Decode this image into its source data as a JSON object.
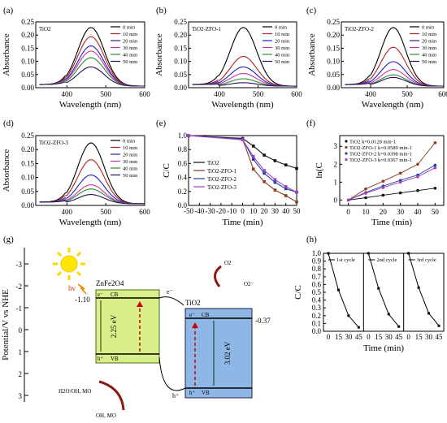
{
  "colors": {
    "t0": "#000000",
    "t10": "#b22222",
    "t20": "#1f1fbf",
    "t30": "#cc33aa",
    "t40": "#2e8b2e",
    "t50": "#2a0d5e",
    "TiO2": "#111111",
    "ZFO1": "#8b3a1e",
    "ZFO2": "#2040a0",
    "ZFO3": "#a040c0"
  },
  "chart_data": [
    {
      "id": "a",
      "panel_label": "(a)",
      "type": "line",
      "name": "TiO2",
      "xlabel": "Wavelength (nm)",
      "ylabel": "Absorbance",
      "xlim": [
        320,
        600
      ],
      "ylim": [
        0.0,
        0.25
      ],
      "xticks": [
        "400",
        "500",
        "600"
      ],
      "yticks": [
        "0.00",
        "0.05",
        "0.10",
        "0.15",
        "0.20",
        "0.25"
      ],
      "series": [
        {
          "name": "0 min",
          "peak": 0.235
        },
        {
          "name": "10 min",
          "peak": 0.2
        },
        {
          "name": "20 min",
          "peak": 0.165
        },
        {
          "name": "30 min",
          "peak": 0.145
        },
        {
          "name": "40 min",
          "peak": 0.12
        },
        {
          "name": "50 min",
          "peak": 0.085
        }
      ]
    },
    {
      "id": "b",
      "panel_label": "(b)",
      "type": "line",
      "name": "TiO2-ZFO-1",
      "xlabel": "Wavelength (nm)",
      "ylabel": "Absorbance",
      "xlim": [
        320,
        600
      ],
      "ylim": [
        0.0,
        0.25
      ],
      "xticks": [
        "400",
        "500",
        "600"
      ],
      "yticks": [
        "0.00",
        "0.05",
        "0.10",
        "0.15",
        "0.20",
        "0.25"
      ],
      "series": [
        {
          "name": "0 min",
          "peak": 0.235
        },
        {
          "name": "10 min",
          "peak": 0.125
        },
        {
          "name": "20 min",
          "peak": 0.085
        },
        {
          "name": "30 min",
          "peak": 0.06
        },
        {
          "name": "40 min",
          "peak": 0.04
        },
        {
          "name": "50 min",
          "peak": 0.025
        }
      ]
    },
    {
      "id": "c",
      "panel_label": "(c)",
      "type": "line",
      "name": "TiO2-ZFO-2",
      "xlabel": "Wavelength (nm)",
      "ylabel": "Absorbance",
      "xlim": [
        320,
        600
      ],
      "ylim": [
        0.0,
        0.25
      ],
      "xticks": [
        "400",
        "500",
        "600"
      ],
      "yticks": [
        "0.00",
        "0.05",
        "0.10",
        "0.15",
        "0.20",
        "0.25"
      ],
      "series": [
        {
          "name": "0 min",
          "peak": 0.235
        },
        {
          "name": "10 min",
          "peak": 0.16
        },
        {
          "name": "20 min",
          "peak": 0.105
        },
        {
          "name": "30 min",
          "peak": 0.075
        },
        {
          "name": "40 min",
          "peak": 0.055
        },
        {
          "name": "50 min",
          "peak": 0.045
        }
      ]
    },
    {
      "id": "d",
      "panel_label": "(d)",
      "type": "line",
      "name": "TiO2-ZFO-3",
      "xlabel": "Wavelength (nm)",
      "ylabel": "Absorbance",
      "xlim": [
        320,
        600
      ],
      "ylim": [
        0.0,
        0.25
      ],
      "xticks": [
        "400",
        "500",
        "600"
      ],
      "yticks": [
        "0.00",
        "0.05",
        "0.10",
        "0.15",
        "0.20",
        "0.25"
      ],
      "series": [
        {
          "name": "0 min",
          "peak": 0.23
        },
        {
          "name": "10 min",
          "peak": 0.17
        },
        {
          "name": "20 min",
          "peak": 0.115
        },
        {
          "name": "30 min",
          "peak": 0.08
        },
        {
          "name": "40 min",
          "peak": 0.065
        },
        {
          "name": "50 min",
          "peak": 0.045
        }
      ]
    },
    {
      "id": "e",
      "panel_label": "(e)",
      "type": "line",
      "xlabel": "Time (min)",
      "ylabel": "C/C0",
      "xlim": [
        -50,
        50
      ],
      "ylim": [
        0.0,
        1.0
      ],
      "xticks": [
        "-50",
        "-40",
        "-30",
        "-20",
        "-10",
        "0",
        "10",
        "20",
        "30",
        "40",
        "50"
      ],
      "yticks": [
        "0.0",
        "0.2",
        "0.4",
        "0.6",
        "0.8",
        "1.0"
      ],
      "x": [
        -50,
        0,
        10,
        20,
        30,
        40,
        50
      ],
      "series": [
        {
          "name": "TiO2",
          "values": [
            1.0,
            0.96,
            0.85,
            0.72,
            0.64,
            0.58,
            0.53
          ]
        },
        {
          "name": "TiO2-ZFO-1",
          "values": [
            1.0,
            0.95,
            0.52,
            0.34,
            0.22,
            0.14,
            0.05
          ]
        },
        {
          "name": "TiO2-ZFO-2",
          "values": [
            1.0,
            0.95,
            0.66,
            0.46,
            0.33,
            0.24,
            0.19
          ]
        },
        {
          "name": "TiO2-ZFO-3",
          "values": [
            1.0,
            0.94,
            0.7,
            0.5,
            0.37,
            0.27,
            0.19
          ]
        }
      ]
    },
    {
      "id": "f",
      "panel_label": "(f)",
      "type": "scatter",
      "xlabel": "Time (min)",
      "ylabel": "ln(C0/C)",
      "xlim": [
        -5,
        55
      ],
      "ylim": [
        -0.3,
        3.6
      ],
      "xticks": [
        "0",
        "10",
        "20",
        "30",
        "40",
        "50"
      ],
      "yticks": [
        "0",
        "1",
        "2",
        "3"
      ],
      "x": [
        0,
        10,
        20,
        30,
        40,
        50
      ],
      "series": [
        {
          "name": "TiO2 k=0.0128 min-1",
          "values": [
            0.0,
            0.13,
            0.27,
            0.4,
            0.53,
            0.66
          ]
        },
        {
          "name": "TiO2-ZFO-1 k=0.0589 min-1",
          "values": [
            0.0,
            0.62,
            1.05,
            1.5,
            2.0,
            3.2
          ]
        },
        {
          "name": "TiO2-ZFO-2 k=0.0398 min-1",
          "values": [
            0.0,
            0.42,
            0.78,
            1.1,
            1.4,
            1.95
          ]
        },
        {
          "name": "TiO2-ZFO-3 k=0.0367 min-1",
          "values": [
            0.0,
            0.38,
            0.7,
            1.0,
            1.3,
            1.8
          ]
        }
      ]
    },
    {
      "id": "h",
      "panel_label": "(h)",
      "type": "line",
      "xlabel": "Time (min)",
      "ylabel": "C/C0",
      "ylim": [
        0.0,
        1.0
      ],
      "yticks": [
        "0.0",
        "0.1",
        "0.2",
        "0.3",
        "0.4",
        "0.5",
        "0.6",
        "0.7",
        "0.8",
        "0.9",
        "1.0"
      ],
      "xticks": [
        "0",
        "15",
        "30",
        "45"
      ],
      "x": [
        0,
        15,
        30,
        45
      ],
      "series": [
        {
          "name": "1st cycle",
          "values": [
            1.0,
            0.53,
            0.2,
            0.05
          ]
        },
        {
          "name": "2nd cycle",
          "values": [
            1.0,
            0.55,
            0.22,
            0.06
          ]
        },
        {
          "name": "3rd cycle",
          "values": [
            1.0,
            0.56,
            0.23,
            0.07
          ]
        }
      ]
    }
  ],
  "diagram": {
    "panel_label": "(g)",
    "ylabel": "Potential/V vs NHE",
    "yticks": [
      "-3",
      "-2",
      "-1",
      "0",
      "1",
      "2",
      "3"
    ],
    "hv": "hv",
    "zfo_title": "ZnFe2O4",
    "tio2_title": "TiO2",
    "zfo_cb": "-1.10",
    "tio2_cb": "-0.37",
    "zfo_gap": "2.25 eV",
    "tio2_gap": "3.02 eV",
    "cb_label": "CB",
    "vb_label": "VB",
    "e_minus": "e⁻",
    "h_plus": "h⁺",
    "o2": "O2",
    "o2_radical": "O2⁻",
    "h2o": "H2O/OH, MO",
    "oh_mo": "OH, MO"
  }
}
